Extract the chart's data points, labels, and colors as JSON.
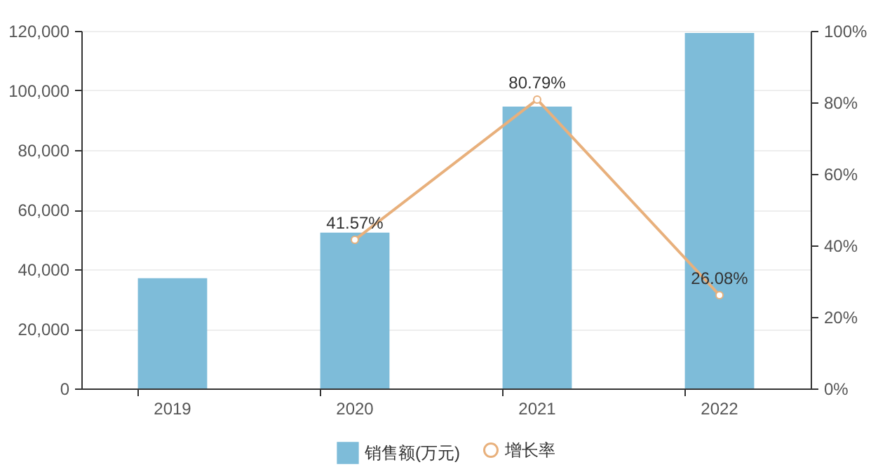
{
  "chart_data": {
    "type": "bar",
    "categories": [
      "2019",
      "2020",
      "2021",
      "2022"
    ],
    "series": [
      {
        "name": "销售额(万元)",
        "color": "#7ebcd9",
        "values": [
          37000,
          52300,
          94600,
          119300
        ]
      },
      {
        "name": "增长率",
        "type": "line",
        "axis": "y2",
        "color": "#e8b07c",
        "values": [
          null,
          41.57,
          80.79,
          26.08
        ],
        "value_labels": [
          null,
          "41.57%",
          "80.79%",
          "26.08%"
        ]
      }
    ],
    "ylim": [
      0,
      120000
    ],
    "yticks": [
      0,
      {
        "value": 20000,
        "label": "20,000"
      },
      {
        "value": 40000,
        "label": "40,000"
      },
      {
        "value": 60000,
        "label": "60,000"
      },
      {
        "value": 80000,
        "label": "80,000"
      },
      {
        "value": 100000,
        "label": "100,000"
      },
      {
        "value": 120000,
        "label": "120,000"
      }
    ],
    "y2lim": [
      0,
      100
    ],
    "y2ticks": [
      {
        "value": 0,
        "label": "0%"
      },
      {
        "value": 20,
        "label": "20%"
      },
      {
        "value": 40,
        "label": "40%"
      },
      {
        "value": 60,
        "label": "60%"
      },
      {
        "value": 80,
        "label": "80%"
      },
      {
        "value": 100,
        "label": "100%"
      }
    ],
    "grid": "y",
    "legend": "bottom",
    "marker": "circle"
  }
}
